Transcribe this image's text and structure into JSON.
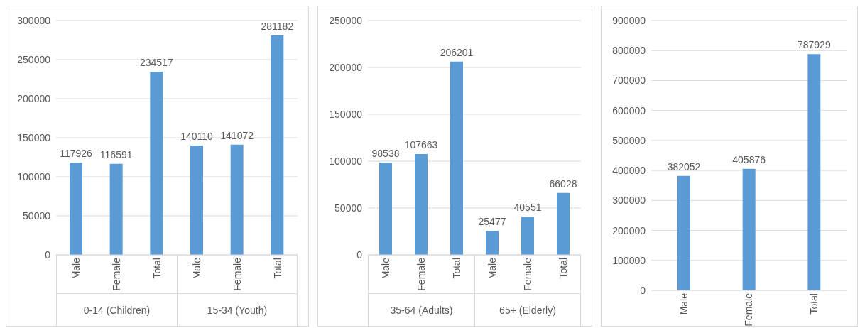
{
  "chart_data": [
    {
      "type": "bar",
      "categories": [
        "Male",
        "Female",
        "Total",
        "Male",
        "Female",
        "Total"
      ],
      "values": [
        117926,
        116591,
        234517,
        140110,
        141072,
        281182
      ],
      "color": "#5b9bd5",
      "ylim": [
        0,
        300000
      ],
      "yticks": [
        0,
        50000,
        100000,
        150000,
        200000,
        250000,
        300000
      ],
      "grid": "y",
      "data_labels": true,
      "annotations": [
        "0-14 (Children)",
        "15-34 (Youth)"
      ]
    },
    {
      "type": "bar",
      "categories": [
        "Male",
        "Female",
        "Total",
        "Male",
        "Female",
        "Total"
      ],
      "values": [
        98538,
        107663,
        206201,
        25477,
        40551,
        66028
      ],
      "color": "#5b9bd5",
      "ylim": [
        0,
        250000
      ],
      "yticks": [
        0,
        50000,
        100000,
        150000,
        200000,
        250000
      ],
      "grid": "y",
      "data_labels": true,
      "annotations": [
        "35-64 (Adults)",
        "65+ (Elderly)"
      ]
    },
    {
      "type": "bar",
      "categories": [
        "Male",
        "Female",
        "Total"
      ],
      "values": [
        382052,
        405876,
        787929
      ],
      "color": "#5b9bd5",
      "ylim": [
        0,
        900000
      ],
      "yticks": [
        0,
        100000,
        200000,
        300000,
        400000,
        500000,
        600000,
        700000,
        800000,
        900000
      ],
      "grid": "y",
      "data_labels": true
    }
  ]
}
